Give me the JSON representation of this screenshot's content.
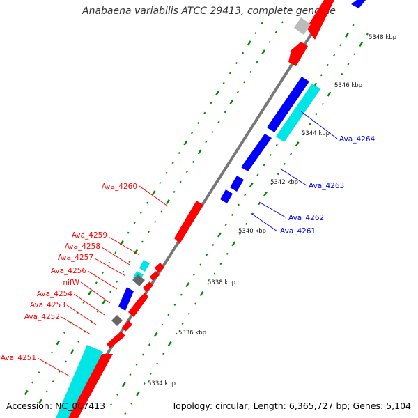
{
  "title": "Anabaena variabilis ATCC 29413, complete genome",
  "accession_text": "Accession: NC_007413",
  "summary_text": "Topology: circular; Length: 6,365,727 bp; Genes: 5,104",
  "colors": {
    "forward_gene": "#ff0000",
    "reverse_gene": "#0000ff",
    "rna_cyan": "#00e5e5",
    "gray_feature": "#666666",
    "backbone": "#777777",
    "tick": "#008800"
  },
  "kbp_labels": [
    "5348 kbp",
    "5346 kbp",
    "5344 kbp",
    "5342 kbp",
    "5340 kbp",
    "5338 kbp",
    "5336 kbp",
    "5334 kbp"
  ],
  "gene_labels": [
    {
      "text": "Ava_4264",
      "strand": "reverse"
    },
    {
      "text": "Ava_4263",
      "strand": "reverse"
    },
    {
      "text": "Ava_4262",
      "strand": "reverse"
    },
    {
      "text": "Ava_4261",
      "strand": "reverse"
    },
    {
      "text": "Ava_4260",
      "strand": "forward"
    },
    {
      "text": "Ava_4259",
      "strand": "forward"
    },
    {
      "text": "Ava_4258",
      "strand": "forward"
    },
    {
      "text": "Ava_4257",
      "strand": "forward"
    },
    {
      "text": "Ava_4256",
      "strand": "forward"
    },
    {
      "text": "nifW",
      "strand": "forward"
    },
    {
      "text": "Ava_4254",
      "strand": "forward"
    },
    {
      "text": "Ava_4253",
      "strand": "forward"
    },
    {
      "text": "Ava_4252",
      "strand": "forward"
    },
    {
      "text": "Ava_4251",
      "strand": "forward"
    }
  ]
}
